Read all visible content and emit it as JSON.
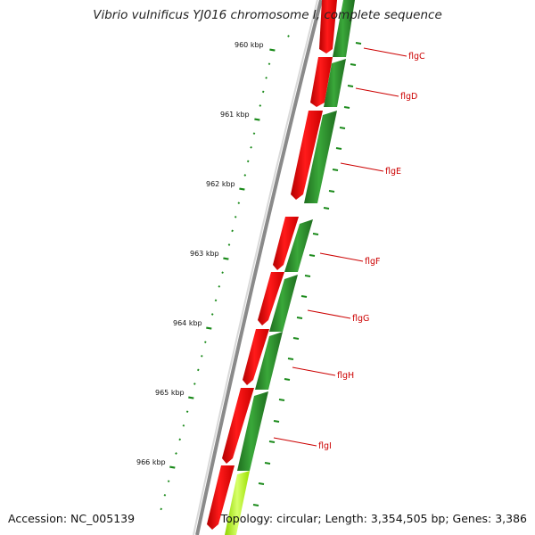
{
  "title": "Vibrio vulnificus YJ016 chromosome I, complete sequence",
  "accession": "Accession: NC_005139",
  "topology_info": "Topology: circular; Length: 3,354,505 bp; Genes: 3,386",
  "ruler_labels": [
    "960 kbp",
    "961 kbp",
    "962 kbp",
    "963 kbp",
    "964 kbp",
    "965 kbp",
    "966 kbp"
  ],
  "genes": [
    "flgC",
    "flgD",
    "flgE",
    "flgF",
    "flgG",
    "flgH",
    "flgI"
  ],
  "colors": {
    "forward_strand": "#ff0000",
    "reverse_strand": "#2e8b2e",
    "highlight_strand": "#b6ff3a",
    "backbone": "#8a8a8a",
    "ruler": "#1a8a1a",
    "label_text": "#cc0000"
  }
}
